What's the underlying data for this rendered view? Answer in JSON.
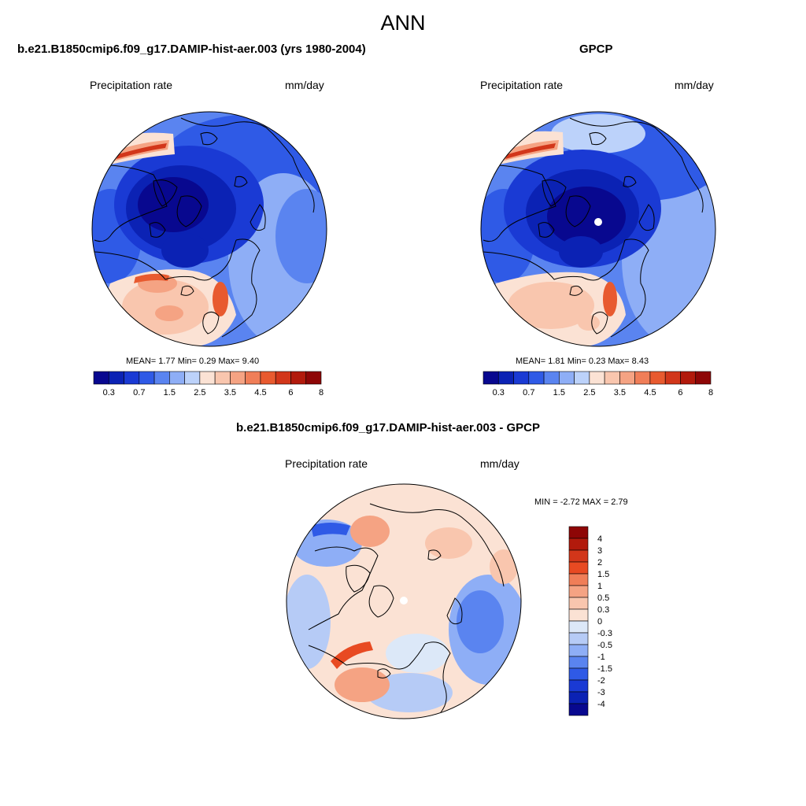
{
  "figure": {
    "title": "ANN"
  },
  "panels": [
    {
      "id": "model",
      "title": "b.e21.B1850cmip6.f09_g17.DAMIP-hist-aer.003 (yrs 1980-2004)",
      "left_label": "Precipitation rate",
      "right_label": "mm/day",
      "stats": "MEAN=  1.77  Min=  0.29  Max=  9.40",
      "colorbar_orientation": "horizontal",
      "colorbar_labels": [
        "0.3",
        "0.7",
        "1.5",
        "2.5",
        "3.5",
        "4.5",
        "6",
        "8"
      ]
    },
    {
      "id": "obs",
      "title": "GPCP",
      "left_label": "Precipitation rate",
      "right_label": "mm/day",
      "stats": "MEAN=  1.81  Min=  0.23  Max=  8.43",
      "colorbar_orientation": "horizontal",
      "colorbar_labels": [
        "0.3",
        "0.7",
        "1.5",
        "2.5",
        "3.5",
        "4.5",
        "6",
        "8"
      ]
    },
    {
      "id": "diff",
      "title": "b.e21.B1850cmip6.f09_g17.DAMIP-hist-aer.003 - GPCP",
      "left_label": "Precipitation rate",
      "right_label": "mm/day",
      "stats": "MIN =  -2.72 MAX =   2.79",
      "colorbar_orientation": "vertical",
      "colorbar_labels": [
        "4",
        "3",
        "2",
        "1.5",
        "1",
        "0.5",
        "0.3",
        "0",
        "-0.3",
        "-0.5",
        "-1",
        "-1.5",
        "-2",
        "-3",
        "-4"
      ]
    }
  ],
  "colors": {
    "abs_scale": [
      "#08088f",
      "#0b22b4",
      "#1a3ad4",
      "#2f5ae6",
      "#5a84f0",
      "#8eaef6",
      "#bcd2fa",
      "#fbe2d4",
      "#f9c6ae",
      "#f5a383",
      "#f07e58",
      "#e85a2f",
      "#d2361a",
      "#b21a0c",
      "#8e0606"
    ],
    "diff_scale": [
      "#8e0606",
      "#b21a0c",
      "#d2361a",
      "#e84a22",
      "#f07e58",
      "#f5a383",
      "#f9c6ae",
      "#fbe2d4",
      "#dce8f8",
      "#b6cbf6",
      "#8eaef6",
      "#5a84f0",
      "#2f5ae6",
      "#1a3ad4",
      "#0b22b4",
      "#08088f"
    ],
    "coastline": "#000000"
  }
}
